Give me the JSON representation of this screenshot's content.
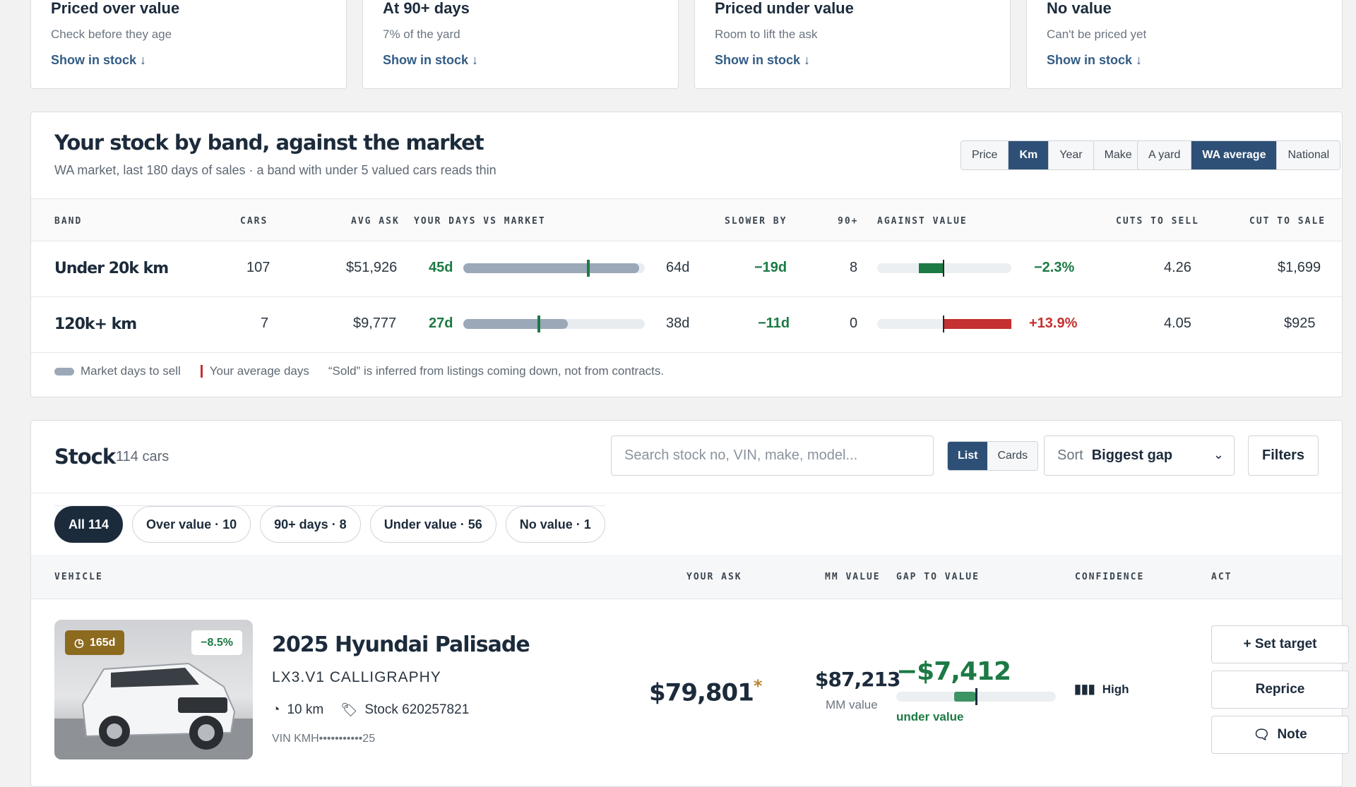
{
  "cards": [
    {
      "title": "Priced over value",
      "sub": "Check before they age",
      "link": "Show in stock ↓"
    },
    {
      "title": "At 90+ days",
      "sub": "7% of the yard",
      "link": "Show in stock ↓"
    },
    {
      "title": "Priced under value",
      "sub": "Room to lift the ask",
      "link": "Show in stock ↓"
    },
    {
      "title": "No value",
      "sub": "Can't be priced yet",
      "link": "Show in stock ↓"
    }
  ],
  "band": {
    "title": "Your stock by band, against the market",
    "subtitle": "WA market, last 180 days of sales · a band with under 5 valued cars reads thin",
    "group_options": [
      "Price",
      "Km",
      "Year",
      "Make"
    ],
    "group_selected": "Km",
    "scope_options": [
      "A yard",
      "WA average",
      "National"
    ],
    "scope_selected": "WA average",
    "columns": [
      "BAND",
      "CARS",
      "AVG ASK",
      "YOUR DAYS VS MARKET",
      "SLOWER BY",
      "90+",
      "AGAINST VALUE",
      "CUTS TO SELL",
      "CUT TO SALE"
    ],
    "rows": [
      {
        "band": "Under 20k km",
        "cars": "107",
        "avg_ask": "$51,926",
        "your_days": "45d",
        "market_days": "64d",
        "your_days_n": 45,
        "market_days_n": 64,
        "slower": "−19d",
        "over90": "8",
        "against_value": "−2.3%",
        "against_value_n": -2.3,
        "cuts_to_sell": "4.26",
        "cut_to_sale": "$1,699"
      },
      {
        "band": "120k+ km",
        "cars": "7",
        "avg_ask": "$9,777",
        "your_days": "27d",
        "market_days": "38d",
        "your_days_n": 27,
        "market_days_n": 38,
        "slower": "−11d",
        "over90": "0",
        "against_value": "+13.9%",
        "against_value_n": 13.9,
        "cuts_to_sell": "4.05",
        "cut_to_sale": "$925"
      }
    ],
    "legend_market": "Market days to sell",
    "legend_yours": "Your average days",
    "legend_note": "“Sold” is inferred from listings coming down, not from contracts."
  },
  "stock": {
    "title": "Stock",
    "count": "114 cars",
    "search_placeholder": "Search stock no, VIN, make, model...",
    "view_options": [
      "List",
      "Cards"
    ],
    "view_selected": "List",
    "sort_label": "Sort",
    "sort_value": "Biggest gap",
    "filters_label": "Filters",
    "chips": [
      "All 114",
      "Over value · 10",
      "90+ days · 8",
      "Under value · 56",
      "No value · 1"
    ],
    "chip_selected": "All 114",
    "columns": [
      "VEHICLE",
      "YOUR ASK",
      "MM VALUE",
      "GAP TO VALUE",
      "CONFIDENCE",
      "ACT"
    ],
    "vehicle": {
      "days_badge": "165d",
      "pct_badge": "−8.5%",
      "name": "2025 Hyundai Palisade",
      "trim": "LX3.V1 CALLIGRAPHY",
      "km": "10 km",
      "stock_no": "Stock 620257821",
      "vin": "VIN KMH•••••••••••25",
      "ask": "$79,801",
      "ask_flag": "*",
      "mm_value": "$87,213",
      "mm_label": "MM value",
      "gap": "−$7,412",
      "gap_label": "under value",
      "confidence": "High",
      "actions": [
        "+ Set target",
        "Reprice",
        "Note"
      ]
    }
  },
  "colors": {
    "accent": "#2e5076",
    "positive": "#1c7a44",
    "negative": "#c53030",
    "aged": "#8c6a1e"
  }
}
